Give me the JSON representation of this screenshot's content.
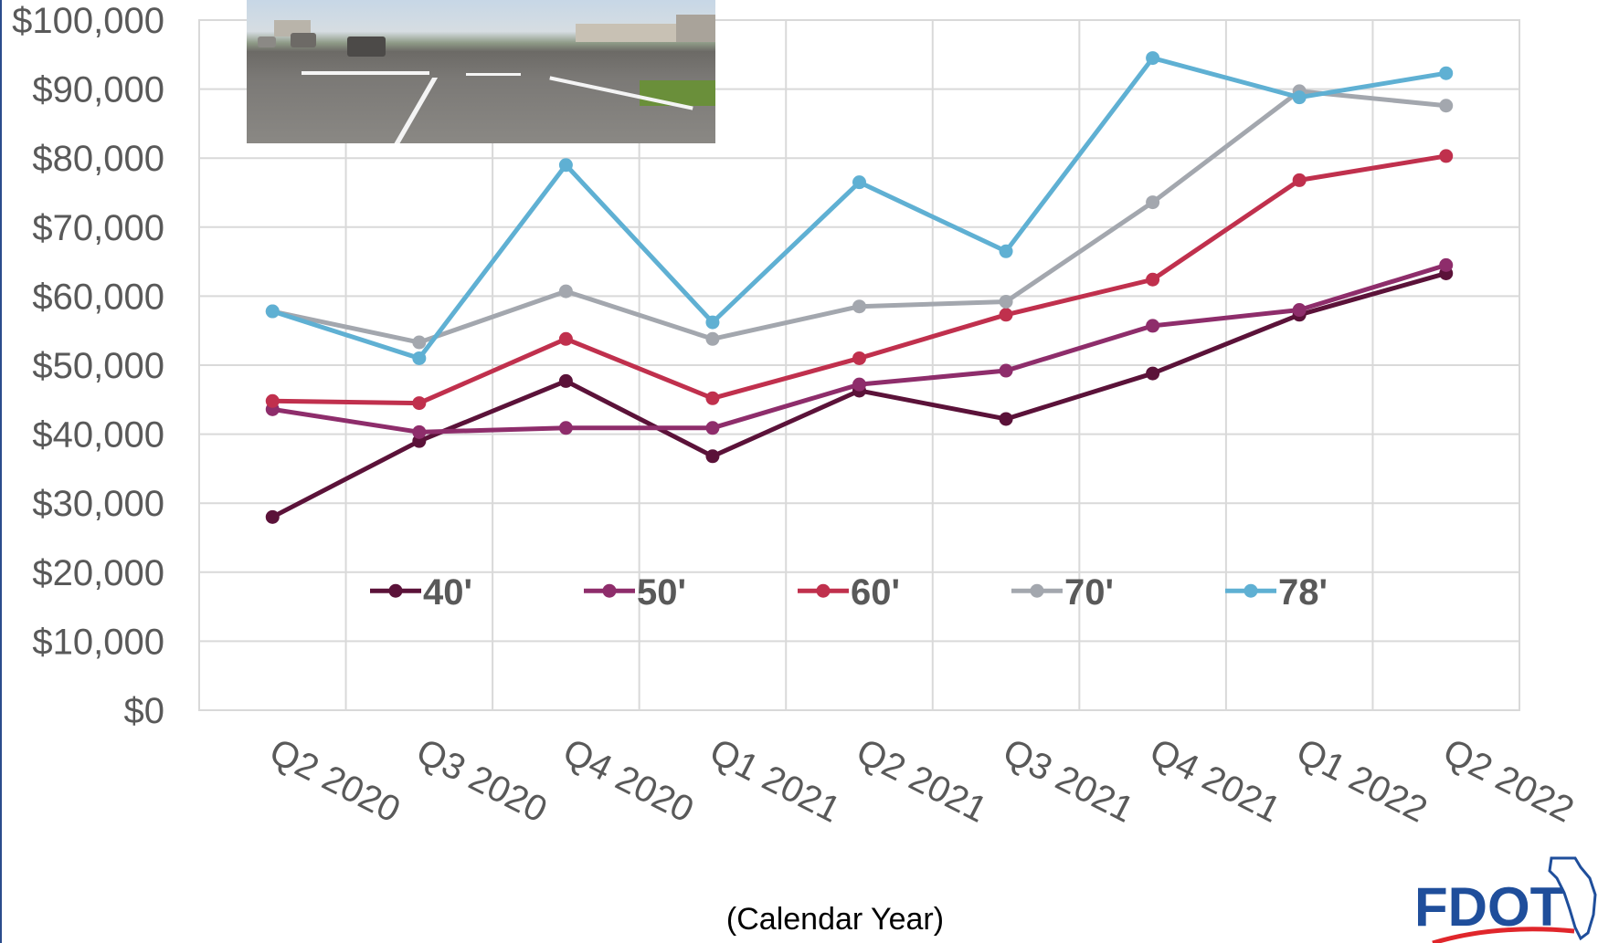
{
  "chart_data": {
    "type": "line",
    "categories": [
      "Q2 2020",
      "Q3 2020",
      "Q4 2020",
      "Q1 2021",
      "Q2 2021",
      "Q3 2021",
      "Q4 2021",
      "Q1 2022",
      "Q2 2022"
    ],
    "ylim": [
      0,
      100000
    ],
    "yticks": [
      {
        "value": 0,
        "label": "$0"
      },
      {
        "value": 10000,
        "label": "$10,000"
      },
      {
        "value": 20000,
        "label": "$20,000"
      },
      {
        "value": 30000,
        "label": "$30,000"
      },
      {
        "value": 40000,
        "label": "$40,000"
      },
      {
        "value": 50000,
        "label": "$50,000"
      },
      {
        "value": 60000,
        "label": "$60,000"
      },
      {
        "value": 70000,
        "label": "$70,000"
      },
      {
        "value": 80000,
        "label": "$80,000"
      },
      {
        "value": 90000,
        "label": "$90,000"
      },
      {
        "value": 100000,
        "label": "$100,000"
      }
    ],
    "xlabel": "(Calendar Year)",
    "ylabel": "",
    "grid": true,
    "legend_position": "inside-bottom",
    "series": [
      {
        "name": "40'",
        "color": "#5b1239",
        "values": [
          28000,
          39000,
          47700,
          36800,
          46300,
          42200,
          48800,
          57300,
          63300
        ]
      },
      {
        "name": "50'",
        "color": "#8e2d6b",
        "values": [
          43600,
          40300,
          40900,
          40900,
          47200,
          49200,
          55700,
          58000,
          64500
        ]
      },
      {
        "name": "60'",
        "color": "#c0304d",
        "values": [
          44800,
          44500,
          53800,
          45200,
          51000,
          57300,
          62400,
          76800,
          80300
        ]
      },
      {
        "name": "70'",
        "color": "#a3a7ae",
        "values": [
          57800,
          53300,
          60700,
          53800,
          58500,
          59200,
          73600,
          89700,
          87600
        ]
      },
      {
        "name": "78'",
        "color": "#5fb0d3",
        "values": [
          57800,
          51000,
          79000,
          56200,
          76500,
          66500,
          94500,
          88800,
          92300
        ]
      }
    ]
  },
  "logo": {
    "text": "FDOT",
    "color": "#1f4e9b",
    "accent": "#e0262b"
  },
  "inset_photo": {
    "icon": "roadway-photo"
  }
}
